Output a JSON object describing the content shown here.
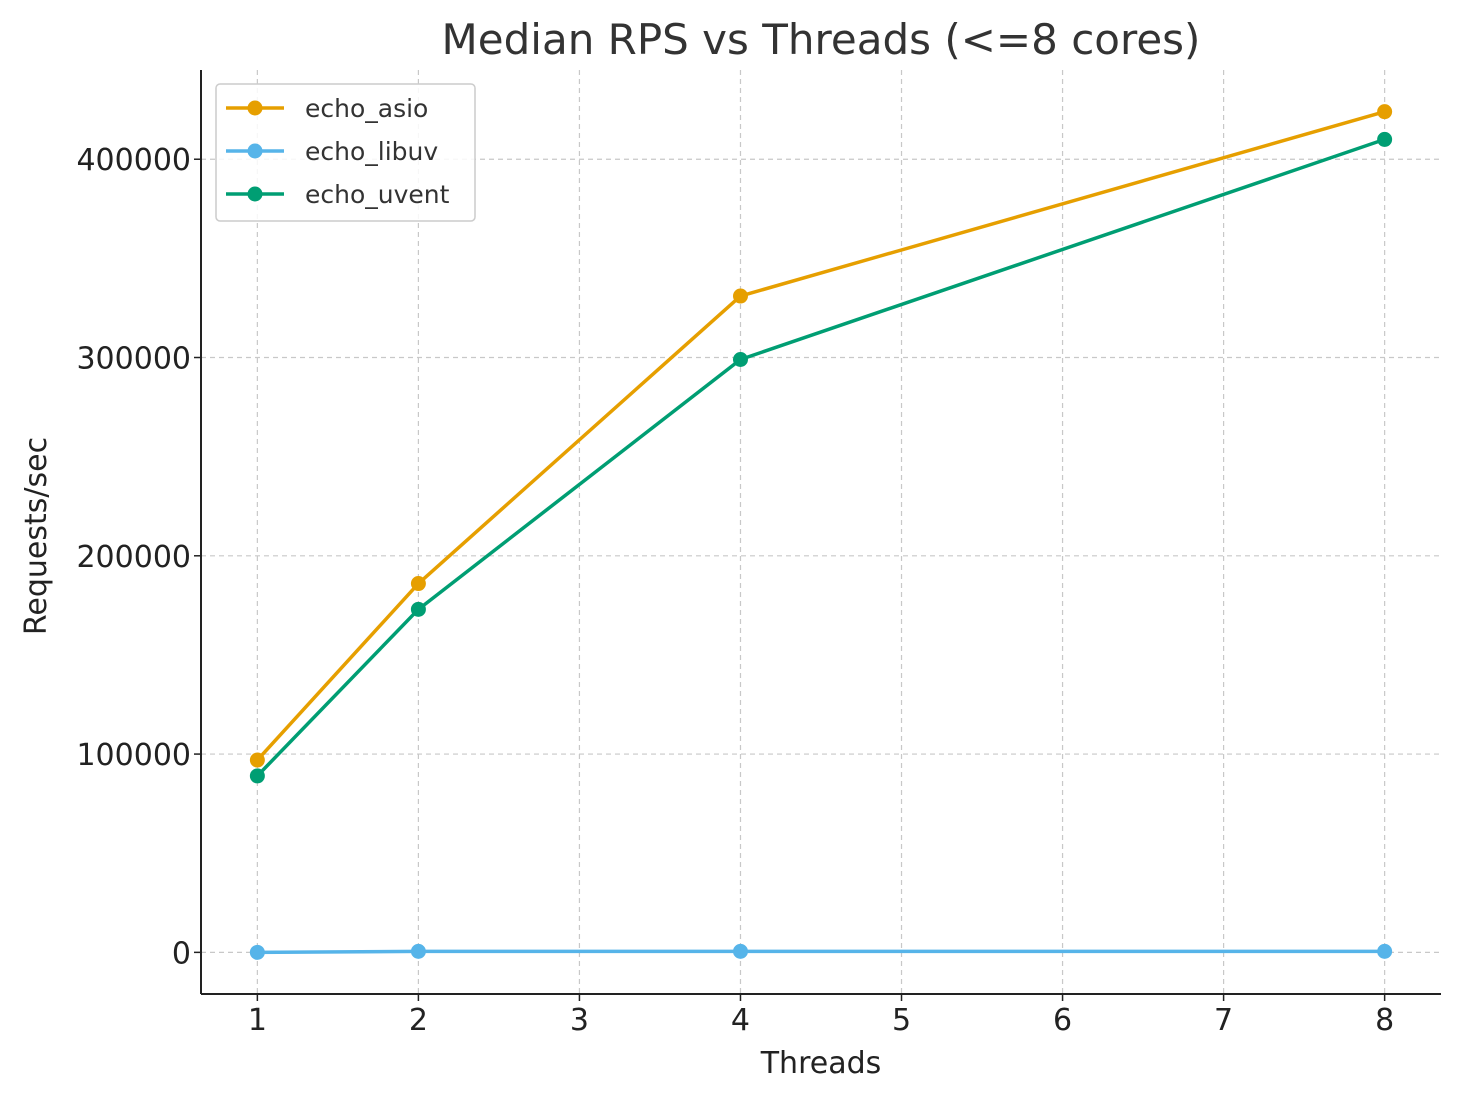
{
  "chart_data": {
    "type": "line",
    "title": "Median RPS vs Threads (<=8 cores)",
    "xlabel": "Threads",
    "ylabel": "Requests/sec",
    "x_ticks": [
      1,
      2,
      3,
      4,
      5,
      6,
      7,
      8
    ],
    "y_ticks": [
      0,
      100000,
      200000,
      300000,
      400000
    ],
    "xlim": [
      0.65,
      8.35
    ],
    "ylim": [
      -21000,
      445000
    ],
    "grid": true,
    "legend_position": "top-left",
    "x": [
      1,
      2,
      4,
      8
    ],
    "series": [
      {
        "name": "echo_asio",
        "color": "#E69F00",
        "values": [
          97000,
          186000,
          331000,
          424000
        ]
      },
      {
        "name": "echo_libuv",
        "color": "#56B4E9",
        "values": [
          0,
          500,
          500,
          500
        ]
      },
      {
        "name": "echo_uvent",
        "color": "#009E73",
        "values": [
          89000,
          173000,
          299000,
          410000
        ]
      }
    ]
  }
}
